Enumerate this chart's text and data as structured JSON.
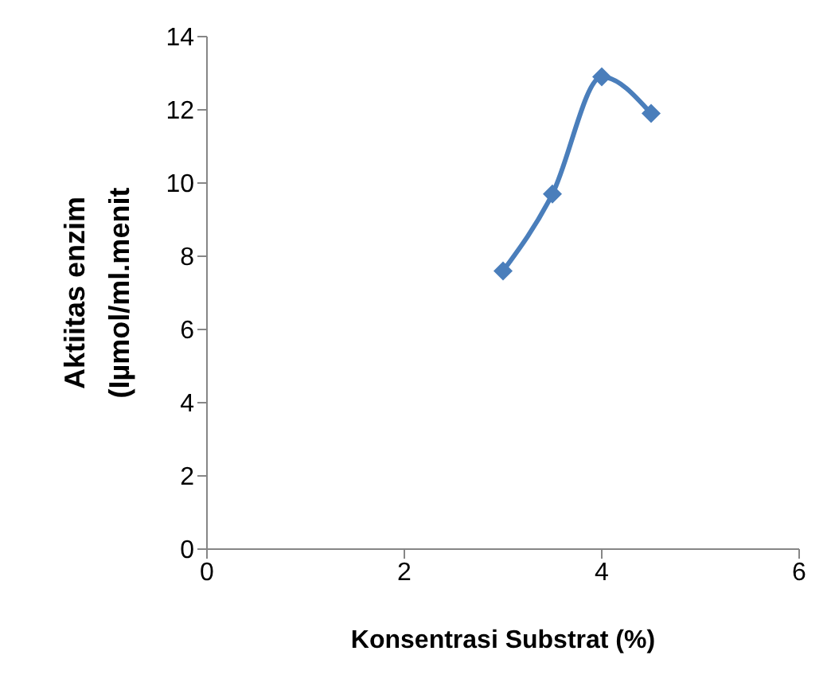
{
  "chart_data": {
    "type": "line",
    "xlabel": "Konsentrasi Substrat (%)",
    "ylabel": "Aktiitas enzim\n(Iµmol/ml.menit",
    "x": [
      3,
      3.5,
      4,
      4.5
    ],
    "series": [
      {
        "color": "#4a7ebb",
        "values": [
          7.6,
          9.7,
          12.9,
          11.9
        ]
      }
    ],
    "xlim": [
      0,
      6
    ],
    "xticks": [
      0,
      2,
      4,
      6
    ],
    "ylim": [
      0,
      14
    ],
    "yticks": [
      0,
      2,
      4,
      6,
      8,
      10,
      12,
      14
    ],
    "grid": false,
    "legend": false,
    "marker": "diamond",
    "line_style": "solid"
  }
}
